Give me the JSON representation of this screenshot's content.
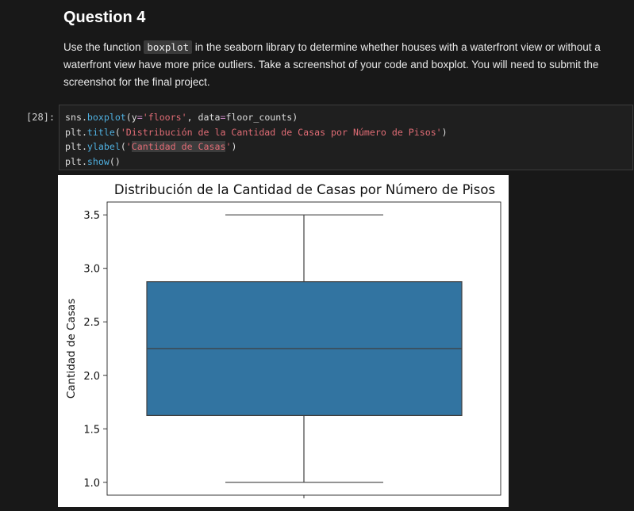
{
  "markdown": {
    "heading": "Question 4",
    "para_before": "Use the function ",
    "code_inline": "boxplot",
    "para_after": " in the seaborn library to determine whether houses with a waterfront view or without a waterfront view have more price outliers. Take a screenshot of your code and boxplot. You will need to submit the screenshot for the final project."
  },
  "cell": {
    "prompt": "[28]:",
    "lines": {
      "l1_a": "sns.",
      "l1_b": "boxplot",
      "l1_c": "(y",
      "l1_d": "=",
      "l1_e": "'floors'",
      "l1_f": ", data",
      "l1_g": "=",
      "l1_h": "floor_counts)",
      "l2_a": "plt.",
      "l2_b": "title",
      "l2_c": "(",
      "l2_d": "'Distribución de la Cantidad de Casas por Número de Pisos'",
      "l2_e": ")",
      "l3_a": "plt.",
      "l3_b": "ylabel",
      "l3_c": "(",
      "l3_d": "'",
      "l3_e": "Cantidad de Casas",
      "l3_f": "'",
      "l3_g": ")",
      "l4_a": "plt.",
      "l4_b": "show",
      "l4_c": "()"
    }
  },
  "chart_data": {
    "type": "box",
    "title": "Distribución de la Cantidad de Casas por Número de Pisos",
    "xlabel": "",
    "ylabel": "Cantidad de Casas",
    "ylim": [
      0.88,
      3.62
    ],
    "yticks": [
      1.0,
      1.5,
      2.0,
      2.5,
      3.0,
      3.5
    ],
    "ytick_labels": [
      "1.0",
      "1.5",
      "2.0",
      "2.5",
      "3.0",
      "3.5"
    ],
    "box": {
      "min": 1.0,
      "q1": 1.625,
      "median": 2.25,
      "q3": 2.875,
      "max": 3.5
    },
    "box_color": "#3274a1",
    "line_color": "#3f3f3f",
    "grid": false,
    "legend": "none"
  }
}
